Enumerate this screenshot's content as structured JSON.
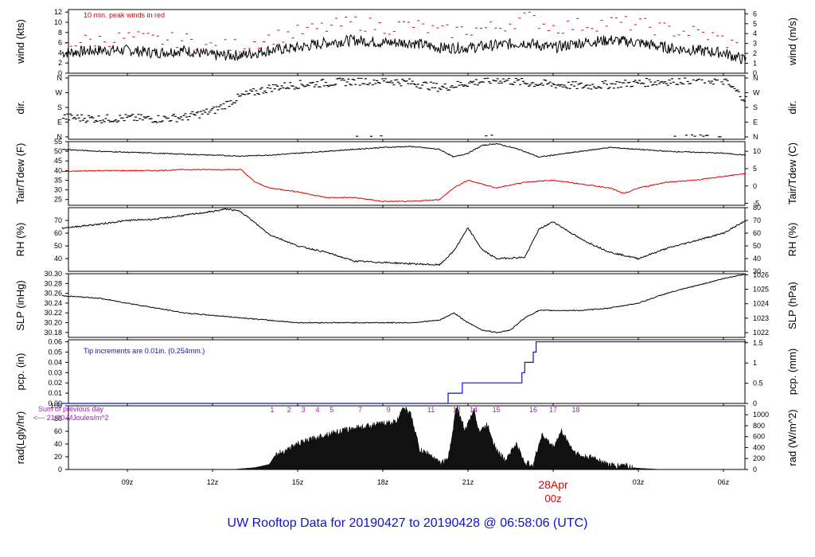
{
  "title": "UW Rooftop Data for 20190427  to  20190428 @ 06:58:06  (UTC)",
  "x_axis": {
    "ticks": [
      "09z",
      "12z",
      "15z",
      "18z",
      "21z",
      "28Apr",
      "03z",
      "06z"
    ],
    "date_label": "28Apr",
    "date_sub_label": "00z"
  },
  "colors": {
    "black": "#000000",
    "red": "#e00000",
    "blue": "#1010d0",
    "purple": "#a020c0"
  },
  "chart_data": [
    {
      "type": "line",
      "panel": "wind",
      "ylabel": "wind (kts)",
      "ylabel_right": "wind (m/s)",
      "yticks_left": [
        0,
        2,
        4,
        6,
        8,
        10,
        12
      ],
      "yticks_right": [
        0,
        1,
        2,
        3,
        4,
        5,
        6
      ],
      "ylim": [
        0,
        12.5
      ],
      "annotation": "10 min. peak winds in red",
      "series": [
        {
          "color": "#000000",
          "x_hours": [
            6.7,
            8,
            9,
            10,
            11,
            12,
            13,
            14,
            15,
            16,
            17,
            18,
            19,
            20,
            21,
            22,
            23,
            24,
            25,
            26,
            27,
            28,
            29,
            30,
            30.8
          ],
          "values": [
            4,
            4.5,
            4.5,
            4,
            4.5,
            3.5,
            3.5,
            4.5,
            5,
            6,
            6.5,
            6,
            6,
            5,
            5,
            5.5,
            6,
            5,
            6,
            6.5,
            6,
            5,
            4.5,
            4,
            2.5
          ]
        },
        {
          "color": "#e00000",
          "x_hours": [
            6.7,
            8,
            9,
            10,
            11,
            12,
            13,
            14,
            15,
            16,
            17,
            18,
            19,
            20,
            21,
            22,
            23,
            24,
            25,
            26,
            27,
            28,
            29,
            30,
            30.8
          ],
          "values": [
            6,
            6.5,
            7,
            6.5,
            6.5,
            5,
            5.5,
            7,
            8,
            9,
            10,
            9,
            9.5,
            8,
            8.5,
            9,
            11,
            9,
            9.5,
            10,
            9.5,
            8.5,
            8,
            6.5,
            4
          ]
        }
      ]
    },
    {
      "type": "scatter",
      "panel": "dir",
      "ylabel": "dir.",
      "ylabel_right": "dir.",
      "yticks_left": [
        "N",
        "E",
        "S",
        "W",
        "N"
      ],
      "yticks_right": [
        "N",
        "E",
        "S",
        "W",
        "N"
      ],
      "x_hours": [
        6.7,
        8,
        9,
        10,
        11,
        12,
        13,
        14,
        15,
        16,
        17,
        18,
        19,
        20,
        21,
        22,
        23,
        24,
        25,
        26,
        27,
        28,
        29,
        30,
        30.8
      ],
      "values_deg": [
        120,
        110,
        115,
        110,
        120,
        160,
        250,
        300,
        320,
        330,
        340,
        345,
        330,
        300,
        330,
        350,
        330,
        320,
        310,
        320,
        330,
        340,
        350,
        340,
        220
      ]
    },
    {
      "type": "line",
      "panel": "temperature",
      "ylabel": "Tair/Tdew (F)",
      "ylabel_right": "Tair/Tdew (C)",
      "yticks_left": [
        25,
        30,
        35,
        40,
        45,
        50,
        55
      ],
      "yticks_right": [
        -5,
        0,
        5,
        10
      ],
      "ylim": [
        22,
        55
      ],
      "series": [
        {
          "color": "#000000",
          "x_hours": [
            6.7,
            8,
            9,
            10,
            11,
            12,
            13,
            14,
            15,
            16,
            17,
            18,
            19,
            20,
            20.5,
            21,
            21.5,
            22,
            22.8,
            23.5,
            24,
            25,
            26,
            27,
            28,
            29,
            30,
            30.8
          ],
          "values": [
            51,
            50,
            49.5,
            49,
            48.5,
            48,
            47.5,
            48,
            49,
            50,
            51,
            52,
            52.5,
            51,
            47,
            49,
            53,
            54,
            51,
            47,
            48,
            50,
            52,
            51,
            50,
            49.5,
            49,
            48
          ]
        },
        {
          "color": "#e00000",
          "x_hours": [
            6.7,
            8,
            9,
            10,
            11,
            12,
            13,
            13.5,
            14,
            15,
            16,
            17,
            18,
            19,
            20,
            20.5,
            21,
            22,
            23,
            24,
            25,
            26,
            26.5,
            27,
            28,
            29,
            30,
            30.8
          ],
          "values": [
            39.5,
            40,
            40,
            40,
            40.5,
            40.5,
            40.5,
            34,
            31,
            29,
            26,
            26,
            24,
            24,
            25,
            31,
            35,
            31,
            34,
            35,
            33,
            31,
            28,
            31,
            34,
            35,
            37,
            38.5
          ]
        }
      ]
    },
    {
      "type": "line",
      "panel": "rh",
      "ylabel": "RH (%)",
      "ylabel_right": "RH (%)",
      "yticks_left": [
        40,
        50,
        60,
        70
      ],
      "yticks_right": [
        30,
        40,
        50,
        60,
        70,
        80
      ],
      "ylim": [
        30,
        80
      ],
      "series": [
        {
          "color": "#000000",
          "x_hours": [
            6.7,
            8,
            9,
            10,
            11,
            12,
            12.5,
            13,
            13.5,
            14,
            15,
            16,
            17,
            18,
            19,
            20,
            20.5,
            21,
            21.5,
            22,
            23,
            23.5,
            24,
            25,
            26,
            27,
            28,
            29,
            30,
            30.8
          ],
          "values": [
            64,
            67,
            70,
            71,
            74,
            77,
            79,
            77,
            68,
            59,
            50,
            45,
            38,
            37,
            36,
            35,
            46,
            64,
            47,
            40,
            41,
            63,
            69,
            55,
            45,
            40,
            48,
            54,
            60,
            70
          ]
        }
      ]
    },
    {
      "type": "line",
      "panel": "slp",
      "ylabel": "SLP (inHg)",
      "ylabel_right": "SLP (hPa)",
      "yticks_left": [
        30.18,
        30.2,
        30.22,
        30.24,
        30.26,
        30.28,
        30.3
      ],
      "yticks_right": [
        1022,
        1023,
        1024,
        1025,
        1026
      ],
      "ylim": [
        30.17,
        30.3
      ],
      "series": [
        {
          "color": "#000000",
          "x_hours": [
            6.7,
            8,
            9,
            10,
            11,
            12,
            13,
            14,
            15,
            16,
            17,
            18,
            19,
            20,
            20.5,
            21,
            21.5,
            22,
            22.5,
            23,
            23.5,
            24,
            25,
            26,
            27,
            28,
            29,
            30,
            30.8
          ],
          "values": [
            30.255,
            30.25,
            30.24,
            30.23,
            30.22,
            30.215,
            30.21,
            30.205,
            30.2,
            30.2,
            30.2,
            30.2,
            30.2,
            30.205,
            30.22,
            30.2,
            30.185,
            30.18,
            30.185,
            30.21,
            30.225,
            30.225,
            30.225,
            30.23,
            30.24,
            30.26,
            30.275,
            30.29,
            30.3
          ]
        }
      ]
    },
    {
      "type": "line",
      "panel": "pcp",
      "ylabel": "pcp. (in)",
      "ylabel_right": "pcp. (mm)",
      "yticks_left": [
        0.0,
        0.01,
        0.02,
        0.03,
        0.04,
        0.05,
        0.06
      ],
      "yticks_right": [
        0,
        0.5,
        1,
        1.5
      ],
      "ylim": [
        0,
        0.062
      ],
      "annotation": "Tip increments are 0.01in. (0.254mm.)",
      "series": [
        {
          "color": "#1010d0",
          "x_hours": [
            6.7,
            20.1,
            20.3,
            20.6,
            20.8,
            22.8,
            22.9,
            23.0,
            23.1,
            23.3,
            23.4,
            30.8
          ],
          "values": [
            0,
            0,
            0.01,
            0.01,
            0.02,
            0.02,
            0.03,
            0.04,
            0.04,
            0.05,
            0.06,
            0.06
          ]
        }
      ]
    },
    {
      "type": "area",
      "panel": "rad",
      "ylabel": "rad(Lgly/hr)",
      "ylabel_right": "rad (W/m^2)",
      "yticks_left": [
        0,
        20,
        40,
        60,
        80,
        100
      ],
      "yticks_right": [
        0,
        200,
        400,
        600,
        800,
        1000
      ],
      "ylim": [
        0,
        100
      ],
      "annotation_line1": "Sum of previous day",
      "annotation_line2": "<--- 21.00 MJoules/m^2",
      "hour_markers": [
        "1",
        "2",
        "3",
        "4",
        "5",
        "7",
        "9",
        "11",
        "12",
        "14",
        "15",
        "16",
        "17",
        "18"
      ],
      "series": [
        {
          "color": "#000000",
          "x_hours": [
            12.7,
            13.5,
            14.0,
            14.2,
            15,
            16,
            17,
            18,
            18.5,
            18.7,
            19.0,
            19.3,
            19.6,
            20.0,
            20.3,
            20.6,
            20.9,
            21.2,
            21.4,
            21.7,
            22.0,
            22.3,
            22.7,
            23.0,
            23.3,
            23.6,
            24.0,
            24.3,
            24.7,
            25.0,
            25.5,
            25.8,
            26.2,
            26.5,
            26.8,
            27.0,
            27.8
          ],
          "values": [
            0,
            3,
            8,
            22,
            40,
            55,
            65,
            72,
            75,
            100,
            85,
            30,
            25,
            10,
            15,
            100,
            60,
            95,
            60,
            70,
            30,
            15,
            40,
            10,
            8,
            55,
            35,
            60,
            30,
            20,
            18,
            10,
            5,
            8,
            3,
            2,
            0
          ]
        }
      ]
    }
  ]
}
